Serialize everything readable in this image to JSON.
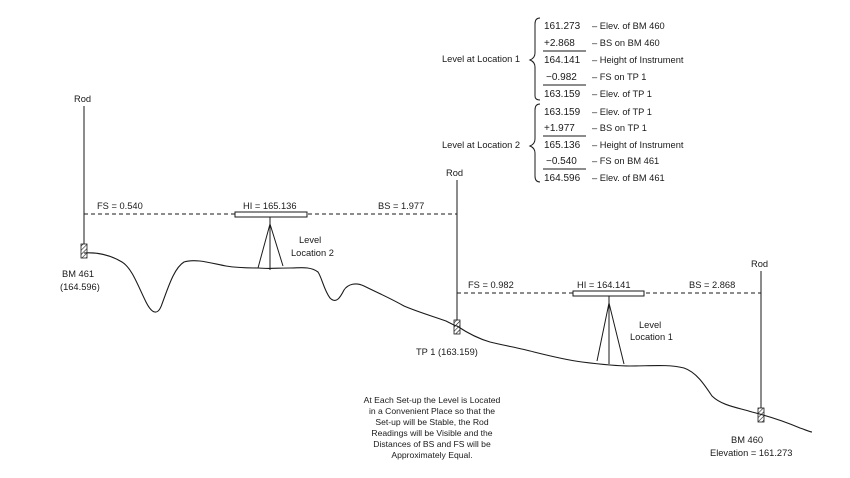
{
  "computation": {
    "location1": {
      "label": "Level at Location 1",
      "rows": [
        {
          "value": "161.273",
          "desc": "– Elev. of BM 460"
        },
        {
          "value": "+2.868",
          "desc": "– BS on BM 460"
        },
        {
          "value": "164.141",
          "desc": "– Height of Instrument"
        },
        {
          "value": "−0.982",
          "desc": "– FS on TP 1"
        },
        {
          "value": "163.159",
          "desc": "– Elev. of TP 1"
        }
      ]
    },
    "location2": {
      "label": "Level at Location 2",
      "rows": [
        {
          "value": "163.159",
          "desc": "– Elev. of TP 1"
        },
        {
          "value": "+1.977",
          "desc": "– BS on TP 1"
        },
        {
          "value": "165.136",
          "desc": "– Height of Instrument"
        },
        {
          "value": "−0.540",
          "desc": "– FS on BM 461"
        },
        {
          "value": "164.596",
          "desc": "– Elev. of BM 461"
        }
      ]
    }
  },
  "profile": {
    "rod_label": "Rod",
    "bm461": {
      "name": "BM 461",
      "elevation": "(164.596)"
    },
    "tp1": {
      "label": "TP 1 (163.159)"
    },
    "bm460": {
      "name": "BM 460",
      "elevation": "Elevation = 161.273"
    },
    "setup2": {
      "fs": "FS = 0.540",
      "hi": "HI = 165.136",
      "bs": "BS = 1.977",
      "level_line1": "Level",
      "level_line2": "Location 2"
    },
    "setup1": {
      "fs": "FS = 0.982",
      "hi": "HI = 164.141",
      "bs": "BS = 2.868",
      "level_line1": "Level",
      "level_line2": "Location 1"
    }
  },
  "note": [
    "At Each Set-up the Level is Located",
    "in a Convenient Place so that the",
    "Set-up will be Stable, the Rod",
    "Readings will be Visible and the",
    "Distances of BS and FS will be",
    "Approximately Equal."
  ]
}
